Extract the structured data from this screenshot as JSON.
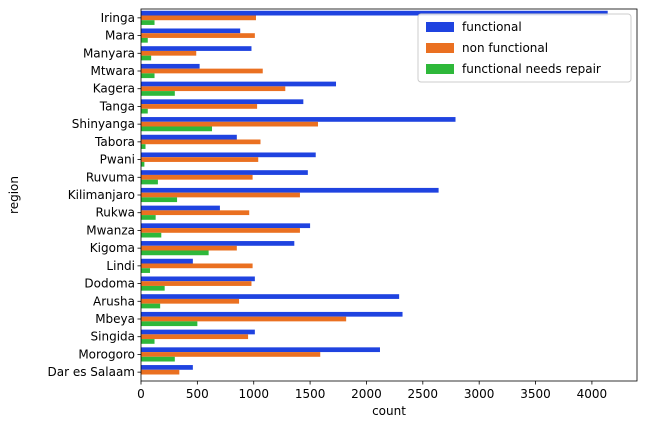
{
  "chart_data": {
    "type": "bar",
    "orientation": "horizontal",
    "title": "",
    "xlabel": "count",
    "ylabel": "region",
    "xlim": [
      0,
      4400
    ],
    "xticks": [
      0,
      500,
      1000,
      1500,
      2000,
      2500,
      3000,
      3500,
      4000
    ],
    "grid": false,
    "legend_position": "top-right",
    "categories": [
      "Iringa",
      "Mara",
      "Manyara",
      "Mtwara",
      "Kagera",
      "Tanga",
      "Shinyanga",
      "Tabora",
      "Pwani",
      "Ruvuma",
      "Kilimanjaro",
      "Rukwa",
      "Mwanza",
      "Kigoma",
      "Lindi",
      "Dodoma",
      "Arusha",
      "Mbeya",
      "Singida",
      "Morogoro",
      "Dar es Salaam"
    ],
    "series": [
      {
        "name": "functional",
        "color": "#1f43e0",
        "values": [
          4140,
          880,
          980,
          520,
          1730,
          1440,
          2790,
          850,
          1550,
          1480,
          2640,
          700,
          1500,
          1360,
          460,
          1010,
          2290,
          2320,
          1010,
          2120,
          460
        ]
      },
      {
        "name": "non functional",
        "color": "#ea7021",
        "values": [
          1020,
          1010,
          490,
          1080,
          1280,
          1030,
          1570,
          1060,
          1040,
          990,
          1410,
          960,
          1410,
          850,
          990,
          980,
          870,
          1820,
          950,
          1590,
          340
        ]
      },
      {
        "name": "functional needs repair",
        "color": "#2eb83a",
        "values": [
          120,
          60,
          90,
          120,
          300,
          60,
          630,
          40,
          30,
          150,
          320,
          130,
          180,
          600,
          80,
          210,
          170,
          500,
          120,
          300,
          0
        ]
      }
    ]
  }
}
